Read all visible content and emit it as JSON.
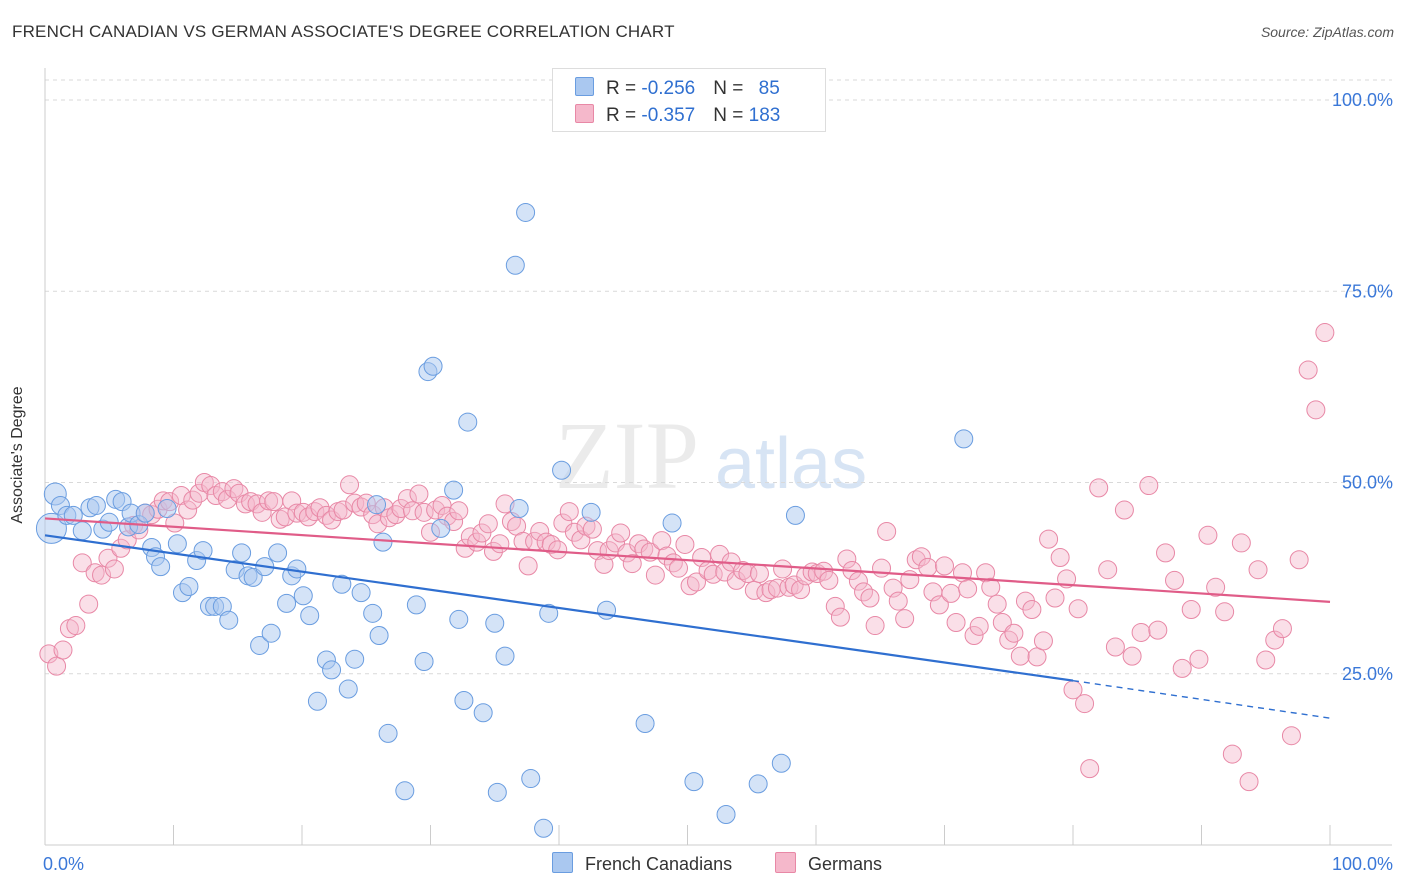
{
  "title": "FRENCH CANADIAN VS GERMAN ASSOCIATE'S DEGREE CORRELATION CHART",
  "source": "Source: ZipAtlas.com",
  "watermark": {
    "zip": "ZIP",
    "atlas": "atlas"
  },
  "legend": {
    "rows": [
      {
        "r_label": "R = ",
        "r_value": "-0.256",
        "n_label": "N = ",
        "n_value": "85",
        "color": "#aac8f0"
      },
      {
        "r_label": "R = ",
        "r_value": "-0.357",
        "n_label": "N = ",
        "n_value": "183",
        "color": "#f5b8cb"
      }
    ]
  },
  "bottom_legend": [
    {
      "label": "French Canadians",
      "color": "#aac8f0"
    },
    {
      "label": "Germans",
      "color": "#f5b8cb"
    }
  ],
  "chart_data": {
    "type": "scatter",
    "title": "FRENCH CANADIAN VS GERMAN ASSOCIATE'S DEGREE CORRELATION CHART",
    "xlabel": "",
    "ylabel": "Associate's Degree",
    "xlim": [
      0,
      100
    ],
    "ylim": [
      0,
      100
    ],
    "x_tick_labels": [
      "0.0%",
      "100.0%"
    ],
    "y_tick_labels": [
      "25.0%",
      "50.0%",
      "75.0%",
      "100.0%"
    ],
    "y_ticks": [
      25,
      50,
      75,
      100
    ],
    "grid": true,
    "legend_position": "top-center",
    "series": [
      {
        "name": "French Canadians",
        "color": "#6a9de0",
        "fill": "#aac8f0",
        "trend": {
          "x0": 0,
          "y0": 43.1,
          "x1": 80,
          "y1": 24.1,
          "dashed_to": 100,
          "dashed_y": 19.2,
          "color": "#2f6fd0"
        },
        "points": [
          [
            0.5,
            44
          ],
          [
            0.8,
            48.5
          ],
          [
            1.2,
            47
          ],
          [
            1.7,
            45.7
          ],
          [
            2.2,
            45.7
          ],
          [
            2.9,
            43.7
          ],
          [
            3.5,
            46.7
          ],
          [
            4,
            47
          ],
          [
            4.5,
            43.9
          ],
          [
            5,
            44.8
          ],
          [
            5.5,
            47.8
          ],
          [
            6,
            47.5
          ],
          [
            6.5,
            44.2
          ],
          [
            6.7,
            46
          ],
          [
            7.3,
            44.5
          ],
          [
            7.8,
            46
          ],
          [
            8.3,
            41.5
          ],
          [
            8.6,
            40.3
          ],
          [
            9,
            39
          ],
          [
            9.5,
            46.6
          ],
          [
            10.3,
            42
          ],
          [
            10.7,
            35.6
          ],
          [
            11.2,
            36.4
          ],
          [
            11.8,
            39.8
          ],
          [
            12.3,
            41.1
          ],
          [
            12.8,
            33.8
          ],
          [
            13.2,
            33.8
          ],
          [
            13.8,
            33.8
          ],
          [
            14.3,
            32
          ],
          [
            14.8,
            38.6
          ],
          [
            15.3,
            40.8
          ],
          [
            15.8,
            37.8
          ],
          [
            16.2,
            37.6
          ],
          [
            16.7,
            28.7
          ],
          [
            17.1,
            39
          ],
          [
            17.6,
            30.3
          ],
          [
            18.1,
            40.8
          ],
          [
            18.8,
            34.2
          ],
          [
            19.2,
            37.8
          ],
          [
            19.6,
            38.7
          ],
          [
            20.1,
            35.2
          ],
          [
            20.6,
            32.6
          ],
          [
            21.2,
            21.4
          ],
          [
            21.9,
            26.8
          ],
          [
            22.3,
            25.5
          ],
          [
            23.1,
            36.7
          ],
          [
            23.6,
            23
          ],
          [
            24.1,
            26.9
          ],
          [
            24.6,
            35.6
          ],
          [
            25.5,
            32.9
          ],
          [
            25.8,
            47.1
          ],
          [
            26,
            30
          ],
          [
            26.3,
            42.2
          ],
          [
            26.7,
            17.2
          ],
          [
            28,
            9.7
          ],
          [
            28.9,
            34
          ],
          [
            29.5,
            26.6
          ],
          [
            29.8,
            64.5
          ],
          [
            30.2,
            65.2
          ],
          [
            30.8,
            44
          ],
          [
            31.8,
            49
          ],
          [
            32.2,
            32.1
          ],
          [
            32.6,
            21.5
          ],
          [
            32.9,
            57.9
          ],
          [
            34.1,
            19.9
          ],
          [
            35,
            31.6
          ],
          [
            35.2,
            9.5
          ],
          [
            35.8,
            27.3
          ],
          [
            36.6,
            78.4
          ],
          [
            36.9,
            46.6
          ],
          [
            37.4,
            85.3
          ],
          [
            37.8,
            11.3
          ],
          [
            38.8,
            4.8
          ],
          [
            39.2,
            32.9
          ],
          [
            40.2,
            51.6
          ],
          [
            42.5,
            46.1
          ],
          [
            43.7,
            33.3
          ],
          [
            46.7,
            18.5
          ],
          [
            48.8,
            44.7
          ],
          [
            50.5,
            10.9
          ],
          [
            53,
            6.6
          ],
          [
            55.5,
            10.6
          ],
          [
            57.3,
            13.3
          ],
          [
            58.4,
            45.7
          ],
          [
            71.5,
            55.7
          ]
        ]
      },
      {
        "name": "Germans",
        "color": "#e888a6",
        "fill": "#f5b8cb",
        "trend": {
          "x0": 0,
          "y0": 45.3,
          "x1": 100,
          "y1": 34.4,
          "color": "#e05c88"
        },
        "points": [
          [
            0.3,
            27.6
          ],
          [
            0.9,
            26
          ],
          [
            1.4,
            28.1
          ],
          [
            1.9,
            30.9
          ],
          [
            2.4,
            31.3
          ],
          [
            2.9,
            39.5
          ],
          [
            3.4,
            34.1
          ],
          [
            3.9,
            38.2
          ],
          [
            4.4,
            37.9
          ],
          [
            4.9,
            40.1
          ],
          [
            5.4,
            38.7
          ],
          [
            5.9,
            41.4
          ],
          [
            6.4,
            42.5
          ],
          [
            6.9,
            44.4
          ],
          [
            7.3,
            43.8
          ],
          [
            7.8,
            46
          ],
          [
            8.3,
            45.8
          ],
          [
            8.8,
            46.5
          ],
          [
            9.2,
            47.6
          ],
          [
            9.7,
            47.5
          ],
          [
            10.1,
            44.7
          ],
          [
            10.6,
            48.3
          ],
          [
            11.1,
            46.4
          ],
          [
            11.5,
            47.7
          ],
          [
            12,
            48.6
          ],
          [
            12.4,
            50
          ],
          [
            12.9,
            49.6
          ],
          [
            13.3,
            48.3
          ],
          [
            13.8,
            48.8
          ],
          [
            14.2,
            47.8
          ],
          [
            14.7,
            49.2
          ],
          [
            15.1,
            48.6
          ],
          [
            15.6,
            47.2
          ],
          [
            16,
            47.5
          ],
          [
            16.5,
            47.2
          ],
          [
            16.9,
            46.1
          ],
          [
            17.4,
            47.6
          ],
          [
            17.8,
            47.5
          ],
          [
            18.3,
            45.2
          ],
          [
            18.7,
            45.5
          ],
          [
            19.2,
            47.6
          ],
          [
            19.6,
            46
          ],
          [
            20.1,
            46.1
          ],
          [
            20.5,
            45.5
          ],
          [
            21,
            46.2
          ],
          [
            21.4,
            46.7
          ],
          [
            21.9,
            45.7
          ],
          [
            22.3,
            45.1
          ],
          [
            22.8,
            46.2
          ],
          [
            23.2,
            46.4
          ],
          [
            23.7,
            49.7
          ],
          [
            24.1,
            47.3
          ],
          [
            24.6,
            46.8
          ],
          [
            25,
            47.3
          ],
          [
            25.5,
            45.8
          ],
          [
            25.9,
            44.6
          ],
          [
            26.4,
            46.7
          ],
          [
            26.8,
            45.4
          ],
          [
            27.3,
            45.8
          ],
          [
            27.7,
            46.6
          ],
          [
            28.2,
            47.9
          ],
          [
            28.6,
            46.3
          ],
          [
            29.1,
            48.5
          ],
          [
            29.5,
            46.1
          ],
          [
            30,
            43.5
          ],
          [
            30.4,
            46.4
          ],
          [
            30.9,
            47
          ],
          [
            31.3,
            45.6
          ],
          [
            31.8,
            44.9
          ],
          [
            32.2,
            46.3
          ],
          [
            32.7,
            41.4
          ],
          [
            33.1,
            42.9
          ],
          [
            33.6,
            42.2
          ],
          [
            34,
            43.4
          ],
          [
            34.5,
            44.6
          ],
          [
            34.9,
            41
          ],
          [
            35.4,
            42
          ],
          [
            35.8,
            47.2
          ],
          [
            36.3,
            44.9
          ],
          [
            36.7,
            44.3
          ],
          [
            37.2,
            42.3
          ],
          [
            37.6,
            39.1
          ],
          [
            38.1,
            42.3
          ],
          [
            38.5,
            43.6
          ],
          [
            39,
            42.2
          ],
          [
            39.4,
            41.9
          ],
          [
            39.9,
            41.2
          ],
          [
            40.3,
            44.7
          ],
          [
            40.8,
            46.2
          ],
          [
            41.2,
            43.5
          ],
          [
            41.7,
            42.5
          ],
          [
            42.1,
            44.3
          ],
          [
            42.6,
            43.9
          ],
          [
            43,
            41.1
          ],
          [
            43.5,
            39.3
          ],
          [
            43.9,
            41.1
          ],
          [
            44.4,
            42.1
          ],
          [
            44.8,
            43.4
          ],
          [
            45.3,
            40.8
          ],
          [
            45.7,
            39.4
          ],
          [
            46.2,
            42
          ],
          [
            46.6,
            41.3
          ],
          [
            47.1,
            40.9
          ],
          [
            47.5,
            37.9
          ],
          [
            48,
            42.4
          ],
          [
            48.4,
            40.4
          ],
          [
            48.9,
            39.5
          ],
          [
            49.3,
            38.8
          ],
          [
            49.8,
            41.9
          ],
          [
            50.2,
            36.5
          ],
          [
            50.7,
            37
          ],
          [
            51.1,
            40.2
          ],
          [
            51.6,
            38.5
          ],
          [
            52,
            38
          ],
          [
            52.5,
            40.6
          ],
          [
            52.9,
            38.3
          ],
          [
            53.4,
            39.6
          ],
          [
            53.8,
            37.2
          ],
          [
            54.3,
            38.5
          ],
          [
            54.7,
            38.1
          ],
          [
            55.2,
            35.9
          ],
          [
            55.6,
            38.1
          ],
          [
            56.1,
            35.6
          ],
          [
            56.5,
            36
          ],
          [
            57,
            36.2
          ],
          [
            57.4,
            38.7
          ],
          [
            57.9,
            36.3
          ],
          [
            58.3,
            36.6
          ],
          [
            58.8,
            36
          ],
          [
            59.2,
            37.8
          ],
          [
            59.7,
            38.3
          ],
          [
            60.1,
            38.1
          ],
          [
            60.6,
            38.4
          ],
          [
            61,
            37.2
          ],
          [
            61.5,
            33.8
          ],
          [
            61.9,
            32.4
          ],
          [
            62.4,
            40
          ],
          [
            62.8,
            38.5
          ],
          [
            63.3,
            37.1
          ],
          [
            63.7,
            35.7
          ],
          [
            64.2,
            34.9
          ],
          [
            64.6,
            31.3
          ],
          [
            65.1,
            38.8
          ],
          [
            65.5,
            43.6
          ],
          [
            66,
            36.2
          ],
          [
            66.4,
            34.5
          ],
          [
            66.9,
            32.2
          ],
          [
            67.3,
            37.3
          ],
          [
            67.8,
            39.9
          ],
          [
            68.2,
            40.3
          ],
          [
            68.7,
            38.9
          ],
          [
            69.1,
            35.7
          ],
          [
            69.6,
            34
          ],
          [
            70,
            39.1
          ],
          [
            70.5,
            35.5
          ],
          [
            70.9,
            31.7
          ],
          [
            71.4,
            38.2
          ],
          [
            71.8,
            36.1
          ],
          [
            72.3,
            30
          ],
          [
            72.7,
            31.2
          ],
          [
            73.2,
            38.2
          ],
          [
            73.6,
            36.3
          ],
          [
            74.1,
            34.1
          ],
          [
            74.5,
            31.7
          ],
          [
            75,
            29.4
          ],
          [
            75.4,
            30.3
          ],
          [
            75.9,
            27.3
          ],
          [
            76.3,
            34.5
          ],
          [
            76.8,
            33.4
          ],
          [
            77.2,
            27.2
          ],
          [
            77.7,
            29.3
          ],
          [
            78.1,
            42.6
          ],
          [
            78.6,
            34.9
          ],
          [
            79,
            40.2
          ],
          [
            79.5,
            37.4
          ],
          [
            80,
            22.9
          ],
          [
            80.4,
            33.5
          ],
          [
            80.9,
            21.1
          ],
          [
            81.3,
            12.6
          ],
          [
            82,
            49.3
          ],
          [
            82.7,
            38.6
          ],
          [
            83.3,
            28.5
          ],
          [
            84,
            46.4
          ],
          [
            84.6,
            27.3
          ],
          [
            85.3,
            30.4
          ],
          [
            85.9,
            49.6
          ],
          [
            86.6,
            30.7
          ],
          [
            87.2,
            40.8
          ],
          [
            87.9,
            37.2
          ],
          [
            88.5,
            25.7
          ],
          [
            89.2,
            33.4
          ],
          [
            89.8,
            26.9
          ],
          [
            90.5,
            43.1
          ],
          [
            91.1,
            36.3
          ],
          [
            91.8,
            33.1
          ],
          [
            92.4,
            14.5
          ],
          [
            93.1,
            42.1
          ],
          [
            93.7,
            10.9
          ],
          [
            94.4,
            38.6
          ],
          [
            95,
            26.8
          ],
          [
            95.7,
            29.4
          ],
          [
            96.3,
            30.9
          ],
          [
            97,
            16.9
          ],
          [
            97.6,
            39.9
          ],
          [
            98.3,
            64.7
          ],
          [
            98.9,
            59.5
          ],
          [
            99.6,
            69.6
          ]
        ]
      }
    ]
  }
}
